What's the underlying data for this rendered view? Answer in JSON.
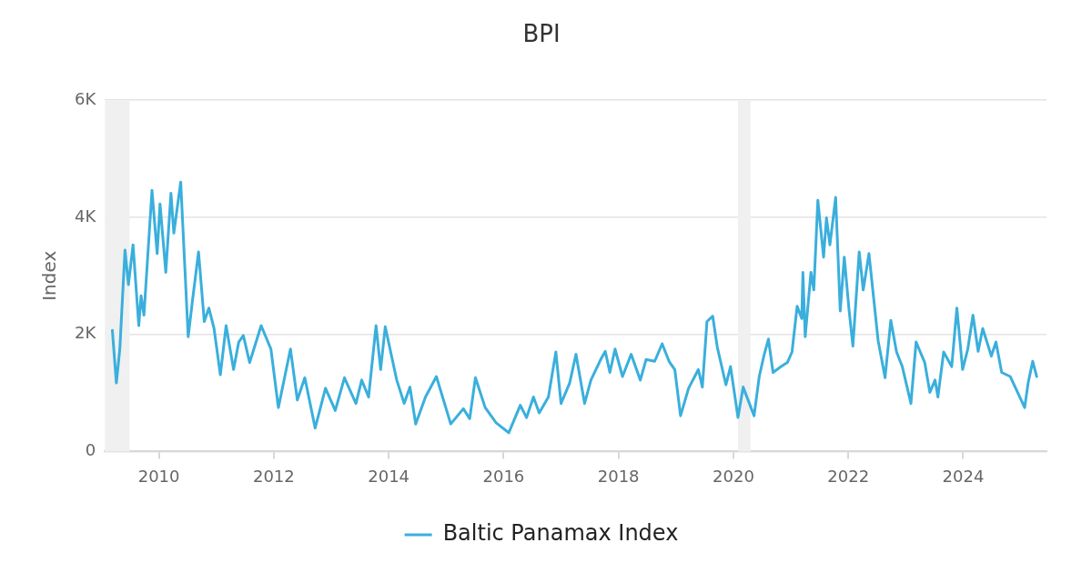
{
  "chart_data": {
    "type": "line",
    "title": "BPI",
    "ylabel": "Index",
    "legend": "bottom",
    "grid": "y",
    "marker": "none",
    "line_style": "solid",
    "xlim": [
      2009.06,
      2025.45
    ],
    "xticks": [
      2010,
      2012,
      2014,
      2016,
      2018,
      2020,
      2022,
      2024
    ],
    "ylim": [
      0,
      6000
    ],
    "yticks": [
      {
        "value": 0,
        "label": "0"
      },
      {
        "value": 2000,
        "label": "2K"
      },
      {
        "value": 4000,
        "label": "4K"
      },
      {
        "value": 6000,
        "label": "6K"
      }
    ],
    "bands": [
      {
        "axis": "x",
        "from": 2009.06,
        "to": 2009.49,
        "color": "#f0f0f0"
      },
      {
        "axis": "x",
        "from": 2020.08,
        "to": 2020.3,
        "color": "#f0f0f0"
      }
    ],
    "series": [
      {
        "name": "Baltic Panamax Index",
        "color": "#3aafdc",
        "x": [
          2009.19,
          2009.26,
          2009.32,
          2009.41,
          2009.47,
          2009.55,
          2009.65,
          2009.69,
          2009.74,
          2009.88,
          2009.97,
          2010.02,
          2010.12,
          2010.21,
          2010.26,
          2010.38,
          2010.51,
          2010.59,
          2010.69,
          2010.79,
          2010.87,
          2010.96,
          2011.07,
          2011.17,
          2011.3,
          2011.39,
          2011.47,
          2011.58,
          2011.78,
          2011.95,
          2012.08,
          2012.29,
          2012.41,
          2012.54,
          2012.72,
          2012.9,
          2013.07,
          2013.23,
          2013.43,
          2013.53,
          2013.65,
          2013.78,
          2013.86,
          2013.94,
          2014.14,
          2014.27,
          2014.37,
          2014.47,
          2014.64,
          2014.83,
          2015.08,
          2015.3,
          2015.41,
          2015.51,
          2015.68,
          2015.87,
          2016.09,
          2016.29,
          2016.4,
          2016.52,
          2016.62,
          2016.78,
          2016.91,
          2017.0,
          2017.15,
          2017.26,
          2017.41,
          2017.52,
          2017.69,
          2017.77,
          2017.85,
          2017.94,
          2018.07,
          2018.22,
          2018.38,
          2018.48,
          2018.63,
          2018.76,
          2018.88,
          2018.98,
          2019.08,
          2019.22,
          2019.39,
          2019.46,
          2019.54,
          2019.64,
          2019.72,
          2019.87,
          2019.95,
          2020.08,
          2020.17,
          2020.36,
          2020.45,
          2020.53,
          2020.61,
          2020.69,
          2020.83,
          2020.94,
          2021.02,
          2021.11,
          2021.19,
          2021.21,
          2021.25,
          2021.35,
          2021.4,
          2021.47,
          2021.57,
          2021.62,
          2021.68,
          2021.78,
          2021.86,
          2021.93,
          2022.01,
          2022.08,
          2022.19,
          2022.26,
          2022.36,
          2022.52,
          2022.64,
          2022.74,
          2022.84,
          2022.94,
          2023.09,
          2023.18,
          2023.33,
          2023.42,
          2023.51,
          2023.56,
          2023.66,
          2023.8,
          2023.89,
          2023.99,
          2024.08,
          2024.17,
          2024.26,
          2024.34,
          2024.49,
          2024.57,
          2024.67,
          2024.82,
          2025.07,
          2025.13,
          2025.21,
          2025.28
        ],
        "values": [
          2070,
          1170,
          1750,
          3440,
          2850,
          3530,
          2150,
          2660,
          2330,
          4460,
          3380,
          4230,
          3060,
          4410,
          3730,
          4600,
          1960,
          2620,
          3410,
          2220,
          2450,
          2100,
          1310,
          2150,
          1400,
          1870,
          1980,
          1520,
          2150,
          1750,
          750,
          1750,
          880,
          1260,
          400,
          1080,
          700,
          1260,
          820,
          1220,
          930,
          2150,
          1400,
          2130,
          1220,
          820,
          1100,
          470,
          930,
          1280,
          470,
          730,
          560,
          1260,
          750,
          490,
          320,
          790,
          580,
          930,
          660,
          930,
          1700,
          820,
          1170,
          1660,
          820,
          1220,
          1570,
          1710,
          1350,
          1750,
          1280,
          1660,
          1220,
          1570,
          1540,
          1840,
          1540,
          1400,
          610,
          1080,
          1400,
          1100,
          2220,
          2310,
          1780,
          1140,
          1450,
          580,
          1100,
          610,
          1280,
          1630,
          1920,
          1350,
          1450,
          1520,
          1700,
          2480,
          2270,
          3060,
          1960,
          3060,
          2760,
          4290,
          3320,
          3990,
          3530,
          4340,
          2400,
          3320,
          2450,
          1800,
          3410,
          2760,
          3380,
          1890,
          1260,
          2240,
          1700,
          1450,
          820,
          1870,
          1520,
          1010,
          1220,
          930,
          1700,
          1450,
          2450,
          1400,
          1750,
          2330,
          1710,
          2100,
          1630,
          1870,
          1350,
          1280,
          750,
          1170,
          1540,
          1280
        ]
      }
    ]
  }
}
